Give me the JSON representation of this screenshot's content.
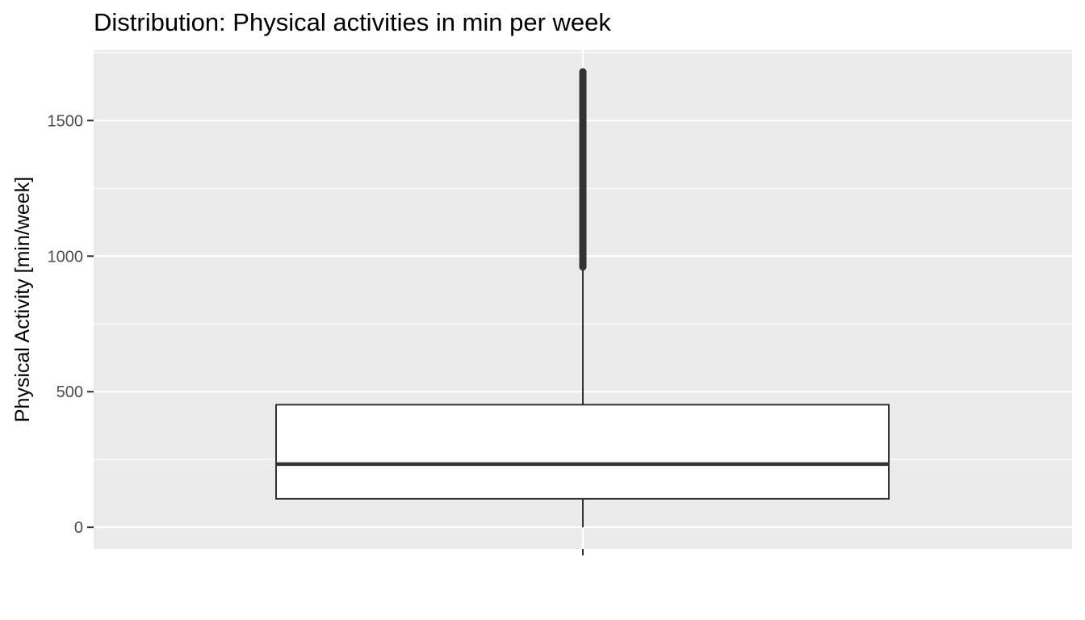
{
  "chart_data": {
    "type": "box",
    "title": "Distribution: Physical activities in min per week",
    "xlabel": "",
    "ylabel": "Physical Activity [min/week]",
    "ylim": [
      -80,
      1760
    ],
    "y_ticks": [
      0,
      500,
      1000,
      1500
    ],
    "y_tick_labels": [
      "0",
      "500",
      "1000",
      "1500"
    ],
    "grid": true,
    "box": {
      "min": 0,
      "q1": 105,
      "median": 233,
      "q3": 452,
      "upper_whisker": 960,
      "outliers_range": [
        960,
        1680
      ]
    },
    "colors": {
      "panel_background": "#ebebeb",
      "grid": "#ffffff",
      "box_fill": "#ffffff",
      "box_stroke": "#333333",
      "tick_label": "#4d4d4d"
    }
  }
}
